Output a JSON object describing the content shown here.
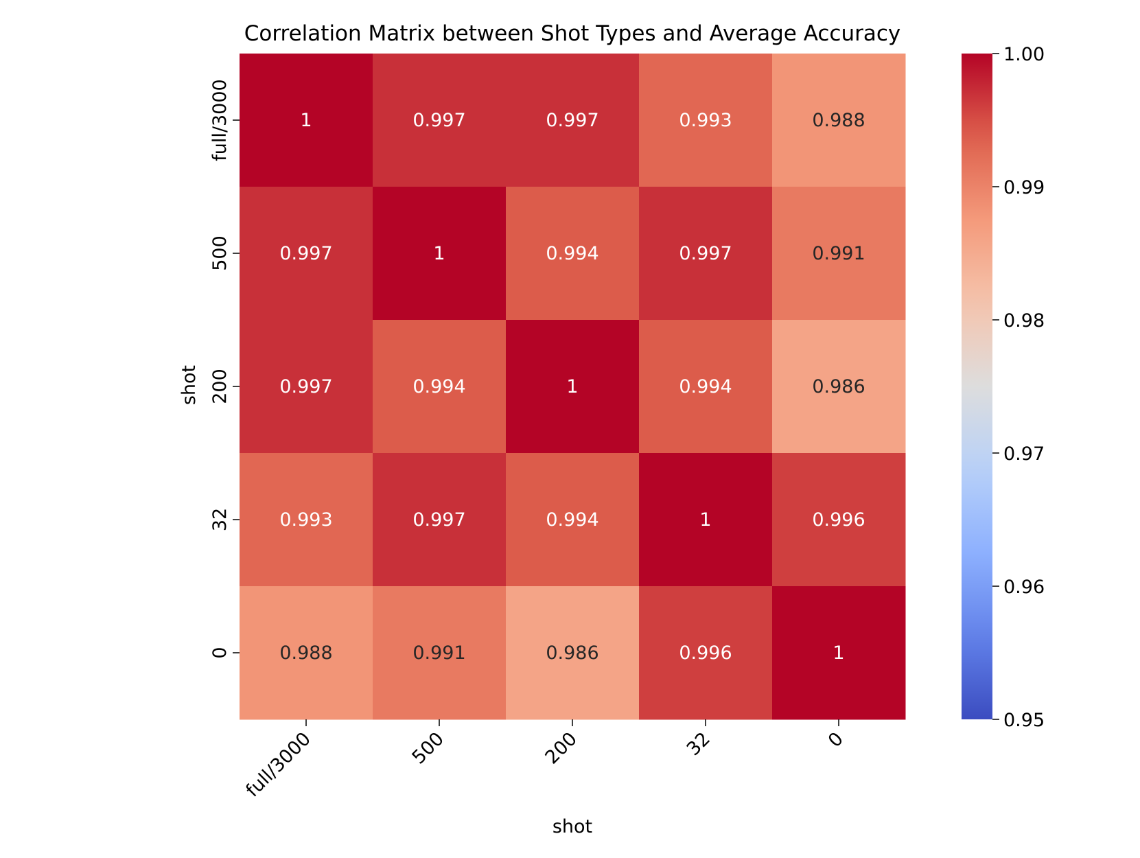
{
  "chart_data": {
    "type": "heatmap",
    "title": "Correlation Matrix between Shot Types and Average Accuracy",
    "xlabel": "shot",
    "ylabel": "shot",
    "x_categories": [
      "full/3000",
      "500",
      "200",
      "32",
      "0"
    ],
    "y_categories": [
      "full/3000",
      "500",
      "200",
      "32",
      "0"
    ],
    "values": [
      [
        1.0,
        0.997,
        0.997,
        0.993,
        0.988
      ],
      [
        0.997,
        1.0,
        0.994,
        0.997,
        0.991
      ],
      [
        0.997,
        0.994,
        1.0,
        0.994,
        0.986
      ],
      [
        0.993,
        0.997,
        0.994,
        1.0,
        0.996
      ],
      [
        0.988,
        0.991,
        0.986,
        0.996,
        1.0
      ]
    ],
    "annotations": [
      [
        "1",
        "0.997",
        "0.997",
        "0.993",
        "0.988"
      ],
      [
        "0.997",
        "1",
        "0.994",
        "0.997",
        "0.991"
      ],
      [
        "0.997",
        "0.994",
        "1",
        "0.994",
        "0.986"
      ],
      [
        "0.993",
        "0.997",
        "0.994",
        "1",
        "0.996"
      ],
      [
        "0.988",
        "0.991",
        "0.986",
        "0.996",
        "1"
      ]
    ],
    "colormap": "coolwarm",
    "vmin": 0.95,
    "vmax": 1.0,
    "colorbar_ticks": [
      "0.95",
      "0.96",
      "0.97",
      "0.98",
      "0.99",
      "1.00"
    ],
    "colorbar_tick_values": [
      0.95,
      0.96,
      0.97,
      0.98,
      0.99,
      1.0
    ]
  }
}
